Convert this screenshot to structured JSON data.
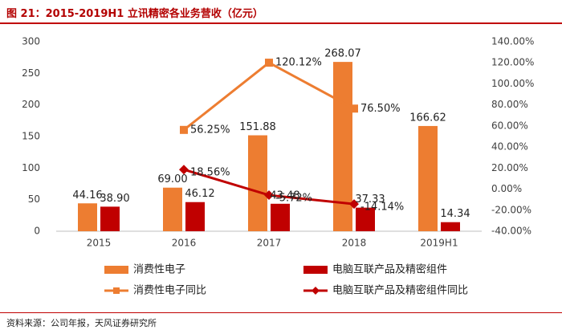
{
  "title": "图 21：2015-2019H1 立讯精密各业务营收（亿元）",
  "source": "资料来源：公司年报，天风证券研究所",
  "colors": {
    "orange": "#ED7D31",
    "red": "#C00000",
    "title_red": "#B30000",
    "axis_text": "#404040"
  },
  "chart_data": {
    "type": "bar",
    "categories": [
      "2015",
      "2016",
      "2017",
      "2018",
      "2019H1"
    ],
    "y_left": {
      "min": 0,
      "max": 300,
      "ticks": [
        "0",
        "50",
        "100",
        "150",
        "200",
        "250",
        "300"
      ]
    },
    "y_right": {
      "min": -40,
      "max": 140,
      "ticks": [
        "-40.00%",
        "-20.00%",
        "0.00%",
        "20.00%",
        "40.00%",
        "60.00%",
        "80.00%",
        "100.00%",
        "120.00%",
        "140.00%"
      ]
    },
    "series": [
      {
        "name": "消费性电子",
        "kind": "bar",
        "color": "#ED7D31",
        "values": [
          44.16,
          69.0,
          151.88,
          268.07,
          166.62
        ],
        "labels": [
          "44.16",
          "69.00",
          "151.88",
          "268.07",
          "166.62"
        ]
      },
      {
        "name": "电脑互联产品及精密组件",
        "kind": "bar",
        "color": "#C00000",
        "values": [
          38.9,
          46.12,
          43.48,
          37.33,
          14.34
        ],
        "labels": [
          "38.90",
          "46.12",
          "43.48",
          "37.33",
          "14.34"
        ]
      },
      {
        "name": "消费性电子同比",
        "kind": "line",
        "axis": "right",
        "color": "#ED7D31",
        "marker": "square",
        "values": [
          null,
          56.25,
          120.12,
          76.5,
          null
        ],
        "labels": [
          "",
          "56.25%",
          "120.12%",
          "76.50%",
          ""
        ]
      },
      {
        "name": "电脑互联产品及精密组件同比",
        "kind": "line",
        "axis": "right",
        "color": "#C00000",
        "marker": "diamond",
        "values": [
          null,
          18.56,
          -5.72,
          -14.14,
          null
        ],
        "labels": [
          "",
          "18.56%",
          "-5.72%",
          "-14.14%",
          ""
        ]
      }
    ]
  }
}
